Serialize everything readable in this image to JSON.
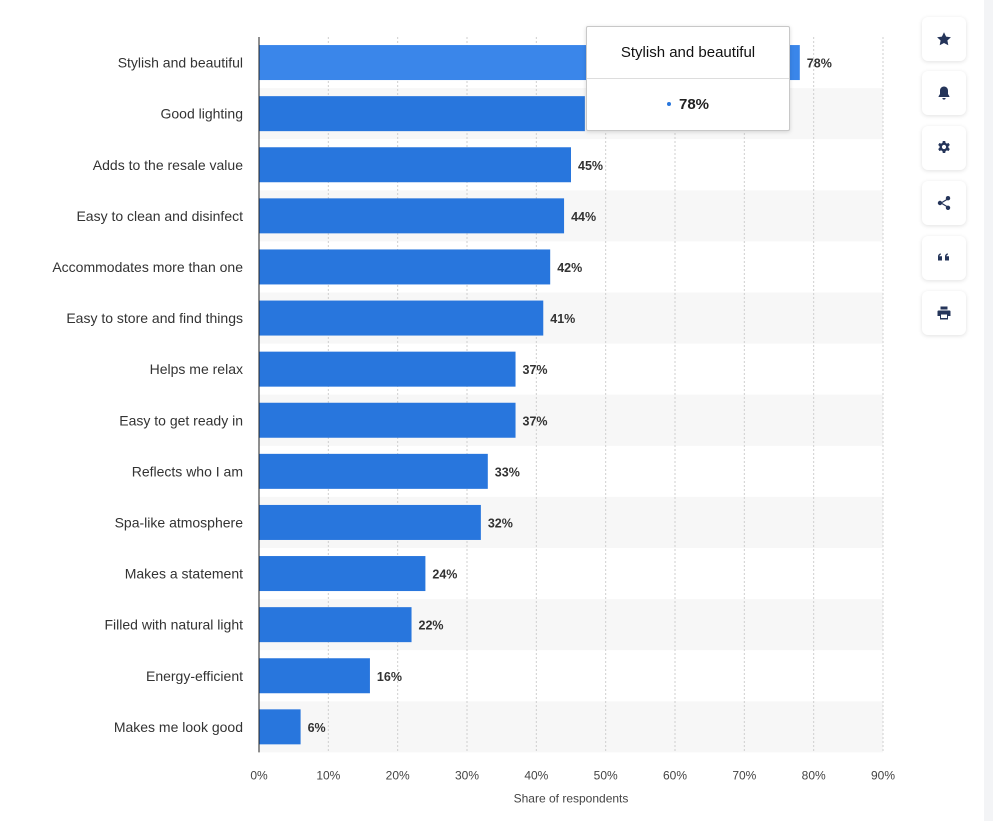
{
  "chart_data": {
    "type": "bar",
    "orientation": "horizontal",
    "categories": [
      "Stylish and beautiful",
      "Good lighting",
      "Adds to the resale value",
      "Easy to clean and disinfect",
      "Accommodates more than one",
      "Easy to store and find things",
      "Helps me relax",
      "Easy to get ready in",
      "Reflects who I am",
      "Spa-like atmosphere",
      "Makes a statement",
      "Filled with natural light",
      "Energy-efficient",
      "Makes me look good"
    ],
    "values": [
      78,
      47,
      45,
      44,
      42,
      41,
      37,
      37,
      33,
      32,
      24,
      22,
      16,
      6
    ],
    "value_labels": [
      "78%",
      "",
      "45%",
      "44%",
      "42%",
      "41%",
      "37%",
      "37%",
      "33%",
      "32%",
      "24%",
      "22%",
      "16%",
      "6%"
    ],
    "xlabel": "Share of respondents",
    "xlim": [
      0,
      90
    ],
    "xticks": [
      "0%",
      "10%",
      "20%",
      "30%",
      "40%",
      "50%",
      "60%",
      "70%",
      "80%",
      "90%"
    ],
    "grid": true,
    "bar_color": "#2876dd",
    "highlight_color": "#3a86ea",
    "highlighted_index": 0
  },
  "tooltip": {
    "title": "Stylish and beautiful",
    "value": "78%"
  },
  "toolbar": {
    "buttons": [
      {
        "name": "star-icon"
      },
      {
        "name": "bell-icon"
      },
      {
        "name": "gear-icon"
      },
      {
        "name": "share-icon"
      },
      {
        "name": "quote-icon"
      },
      {
        "name": "print-icon"
      }
    ]
  }
}
